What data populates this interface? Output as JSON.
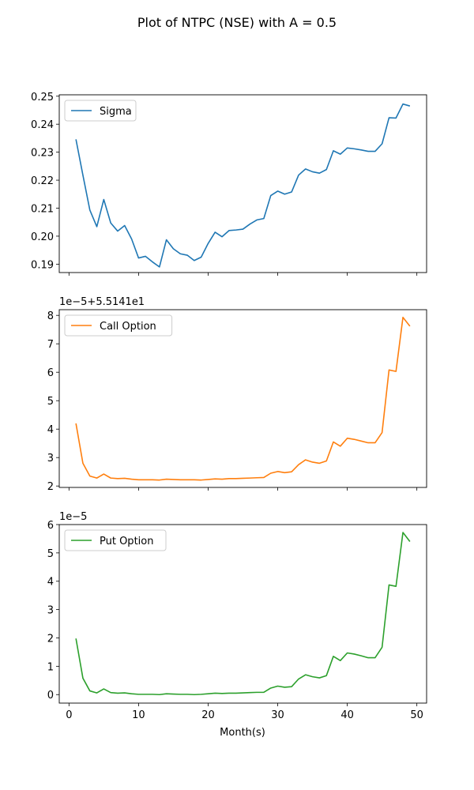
{
  "figure": {
    "title": "Plot of NTPC (NSE) with A = 0.5",
    "xlabel": "Month(s)"
  },
  "chart_data": [
    {
      "type": "line",
      "series_name": "Sigma",
      "color": "#1f77b4",
      "legend": "top-left",
      "xlim": [
        -1.4,
        51.4
      ],
      "ylim": [
        0.187,
        0.2505
      ],
      "yticks": [
        0.19,
        0.2,
        0.21,
        0.22,
        0.23,
        0.24,
        0.25
      ],
      "ytick_labels": [
        "0.19",
        "0.20",
        "0.21",
        "0.22",
        "0.23",
        "0.24",
        "0.25"
      ],
      "yoffset_text": "",
      "xticks": [
        0,
        10,
        20,
        30,
        40,
        50
      ],
      "xtick_labels": [
        "",
        "",
        "",
        "",
        "",
        ""
      ],
      "x": [
        1,
        2,
        3,
        4,
        5,
        6,
        7,
        8,
        9,
        10,
        11,
        12,
        13,
        14,
        15,
        16,
        17,
        18,
        19,
        20,
        21,
        22,
        23,
        24,
        25,
        26,
        27,
        28,
        29,
        30,
        31,
        32,
        33,
        34,
        35,
        36,
        37,
        38,
        39,
        40,
        41,
        42,
        43,
        44,
        45,
        46,
        47,
        48,
        49
      ],
      "y": [
        0.2346,
        0.2218,
        0.2093,
        0.2034,
        0.2131,
        0.2047,
        0.2018,
        0.2038,
        0.199,
        0.1922,
        0.1928,
        0.1908,
        0.189,
        0.1987,
        0.1955,
        0.1937,
        0.1932,
        0.1913,
        0.1925,
        0.1974,
        0.2014,
        0.1998,
        0.202,
        0.2022,
        0.2025,
        0.2043,
        0.2058,
        0.2063,
        0.2145,
        0.2161,
        0.215,
        0.2158,
        0.2218,
        0.224,
        0.223,
        0.2225,
        0.2238,
        0.2305,
        0.2293,
        0.2315,
        0.2312,
        0.2308,
        0.2303,
        0.2303,
        0.233,
        0.2423,
        0.2422,
        0.2472,
        0.2465
      ]
    },
    {
      "type": "line",
      "series_name": "Call Option",
      "color": "#ff7f0e",
      "legend": "top-left",
      "xlim": [
        -1.4,
        51.4
      ],
      "ylim": [
        1.95,
        8.2
      ],
      "yticks": [
        2,
        3,
        4,
        5,
        6,
        7,
        8
      ],
      "ytick_labels": [
        "2",
        "3",
        "4",
        "5",
        "6",
        "7",
        "8"
      ],
      "yoffset_text": "1e−5+5.5141e1",
      "xticks": [
        0,
        10,
        20,
        30,
        40,
        50
      ],
      "xtick_labels": [
        "",
        "",
        "",
        "",
        "",
        ""
      ],
      "x": [
        1,
        2,
        3,
        4,
        5,
        6,
        7,
        8,
        9,
        10,
        11,
        12,
        13,
        14,
        15,
        16,
        17,
        18,
        19,
        20,
        21,
        22,
        23,
        24,
        25,
        26,
        27,
        28,
        29,
        30,
        31,
        32,
        33,
        34,
        35,
        36,
        37,
        38,
        39,
        40,
        41,
        42,
        43,
        44,
        45,
        46,
        47,
        48,
        49
      ],
      "y": [
        4.2,
        2.8,
        2.35,
        2.28,
        2.42,
        2.28,
        2.26,
        2.27,
        2.24,
        2.22,
        2.22,
        2.22,
        2.21,
        2.24,
        2.23,
        2.22,
        2.22,
        2.22,
        2.21,
        2.23,
        2.25,
        2.24,
        2.26,
        2.26,
        2.27,
        2.28,
        2.29,
        2.3,
        2.45,
        2.51,
        2.47,
        2.5,
        2.75,
        2.92,
        2.84,
        2.8,
        2.88,
        3.55,
        3.4,
        3.68,
        3.64,
        3.58,
        3.52,
        3.52,
        3.88,
        6.08,
        6.03,
        7.93,
        7.62
      ]
    },
    {
      "type": "line",
      "series_name": "Put Option",
      "color": "#2ca02c",
      "legend": "top-left",
      "xlim": [
        -1.4,
        51.4
      ],
      "ylim": [
        -0.3,
        6.0
      ],
      "yticks": [
        0,
        1,
        2,
        3,
        4,
        5,
        6
      ],
      "ytick_labels": [
        "0",
        "1",
        "2",
        "3",
        "4",
        "5",
        "6"
      ],
      "yoffset_text": "1e−5",
      "xticks": [
        0,
        10,
        20,
        30,
        40,
        50
      ],
      "xtick_labels": [
        "0",
        "10",
        "20",
        "30",
        "40",
        "50"
      ],
      "x": [
        1,
        2,
        3,
        4,
        5,
        6,
        7,
        8,
        9,
        10,
        11,
        12,
        13,
        14,
        15,
        16,
        17,
        18,
        19,
        20,
        21,
        22,
        23,
        24,
        25,
        26,
        27,
        28,
        29,
        30,
        31,
        32,
        33,
        34,
        35,
        36,
        37,
        38,
        39,
        40,
        41,
        42,
        43,
        44,
        45,
        46,
        47,
        48,
        49
      ],
      "y": [
        1.98,
        0.58,
        0.13,
        0.06,
        0.2,
        0.07,
        0.05,
        0.06,
        0.03,
        0.01,
        0.01,
        0.01,
        0.0,
        0.03,
        0.02,
        0.01,
        0.01,
        0.0,
        0.01,
        0.03,
        0.05,
        0.04,
        0.05,
        0.05,
        0.06,
        0.07,
        0.08,
        0.08,
        0.23,
        0.3,
        0.26,
        0.28,
        0.55,
        0.7,
        0.63,
        0.59,
        0.67,
        1.35,
        1.2,
        1.47,
        1.43,
        1.37,
        1.3,
        1.3,
        1.67,
        3.87,
        3.82,
        5.72,
        5.4
      ]
    }
  ]
}
